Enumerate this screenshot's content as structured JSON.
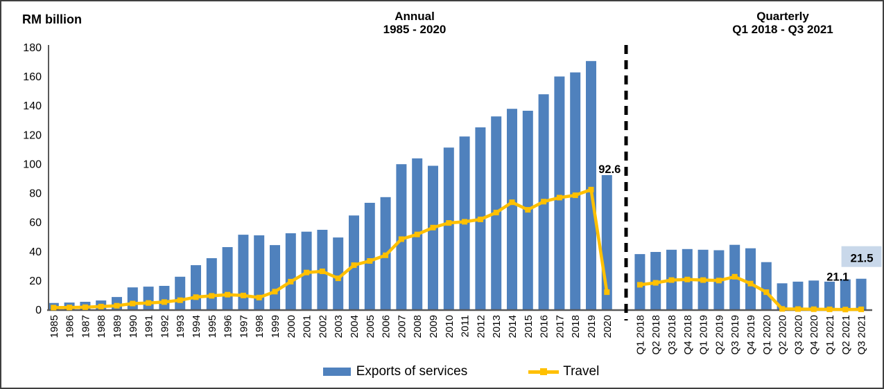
{
  "figure": {
    "y_axis_label": "RM billion"
  },
  "sections": {
    "annual": {
      "title": "Annual",
      "subtitle": "1985 - 2020"
    },
    "quarterly": {
      "title": "Quarterly",
      "subtitle": "Q1 2018 - Q3 2021"
    }
  },
  "legend": {
    "series": [
      "Exports of services",
      "Travel"
    ]
  },
  "colors": {
    "bar": "#4f81bd",
    "line": "#ffc000",
    "highlight_box": "#c9d8ea",
    "axis": "#595959",
    "divider": "#000000",
    "text": "#000000"
  },
  "chart_data": [
    {
      "type": "bar",
      "section": "annual",
      "title": "Annual 1985 - 2020",
      "ylabel": "RM billion",
      "ylim": [
        0,
        180
      ],
      "ytick_step": 20,
      "grid": false,
      "legend_position": "bottom",
      "categories": [
        "1985",
        "1986",
        "1987",
        "1988",
        "1989",
        "1990",
        "1991",
        "1992",
        "1993",
        "1994",
        "1995",
        "1996",
        "1997",
        "1998",
        "1999",
        "2000",
        "2001",
        "2002",
        "2003",
        "2004",
        "2005",
        "2006",
        "2007",
        "2008",
        "2009",
        "2010",
        "2011",
        "2012",
        "2013",
        "2014",
        "2015",
        "2016",
        "2017",
        "2018",
        "2019",
        "2020"
      ],
      "series": [
        {
          "name": "Exports of services",
          "type": "bar",
          "values": [
            4.9,
            5.2,
            5.7,
            6.6,
            9.0,
            15.6,
            16.1,
            16.6,
            22.9,
            30.8,
            35.6,
            43.2,
            51.7,
            51.3,
            44.6,
            52.7,
            53.8,
            55.1,
            49.8,
            64.9,
            73.6,
            77.5,
            100.1,
            104.1,
            99.0,
            111.5,
            119.1,
            125.4,
            132.9,
            138.1,
            136.8,
            148.1,
            160.3,
            163.1,
            170.9,
            92.6
          ]
        },
        {
          "name": "Travel",
          "type": "line",
          "values": [
            1.7,
            1.8,
            2.0,
            2.4,
            3.0,
            4.5,
            4.9,
            5.5,
            6.8,
            8.9,
            9.8,
            10.6,
            10.0,
            8.6,
            12.7,
            19.5,
            25.8,
            26.6,
            21.8,
            30.8,
            33.7,
            37.6,
            48.7,
            51.9,
            56.6,
            59.8,
            60.6,
            62.2,
            66.9,
            74.0,
            68.8,
            74.4,
            77.2,
            78.8,
            82.7,
            12.3
          ]
        }
      ],
      "annotations": [
        {
          "label": "92.6",
          "category": "2020",
          "boxed": false
        }
      ]
    },
    {
      "type": "bar",
      "section": "quarterly",
      "title": "Quarterly Q1 2018 - Q3 2021",
      "ylabel": "RM billion",
      "ylim": [
        0,
        180
      ],
      "ytick_step": 20,
      "grid": false,
      "legend_position": "bottom",
      "categories": [
        "Q1 2018",
        "Q2 2018",
        "Q3 2018",
        "Q4 2018",
        "Q1 2019",
        "Q2 2019",
        "Q3 2019",
        "Q4 2019",
        "Q1 2020",
        "Q2 2020",
        "Q3 2020",
        "Q4 2020",
        "Q1 2021",
        "Q2 2021",
        "Q3 2021"
      ],
      "series": [
        {
          "name": "Exports of services",
          "type": "bar",
          "values": [
            38.4,
            39.9,
            41.4,
            41.9,
            41.4,
            41.1,
            44.8,
            42.4,
            32.9,
            18.4,
            19.5,
            20.3,
            19.5,
            21.1,
            21.5
          ]
        },
        {
          "name": "Travel",
          "type": "line",
          "values": [
            17.4,
            18.7,
            20.6,
            21.0,
            20.6,
            20.3,
            22.9,
            18.2,
            12.3,
            0.8,
            0.7,
            0.6,
            0.5,
            0.4,
            0.5
          ]
        }
      ],
      "annotations": [
        {
          "label": "21.1",
          "category": "Q2 2021",
          "boxed": false
        },
        {
          "label": "21.5",
          "category": "Q3 2021",
          "boxed": true
        }
      ]
    }
  ]
}
